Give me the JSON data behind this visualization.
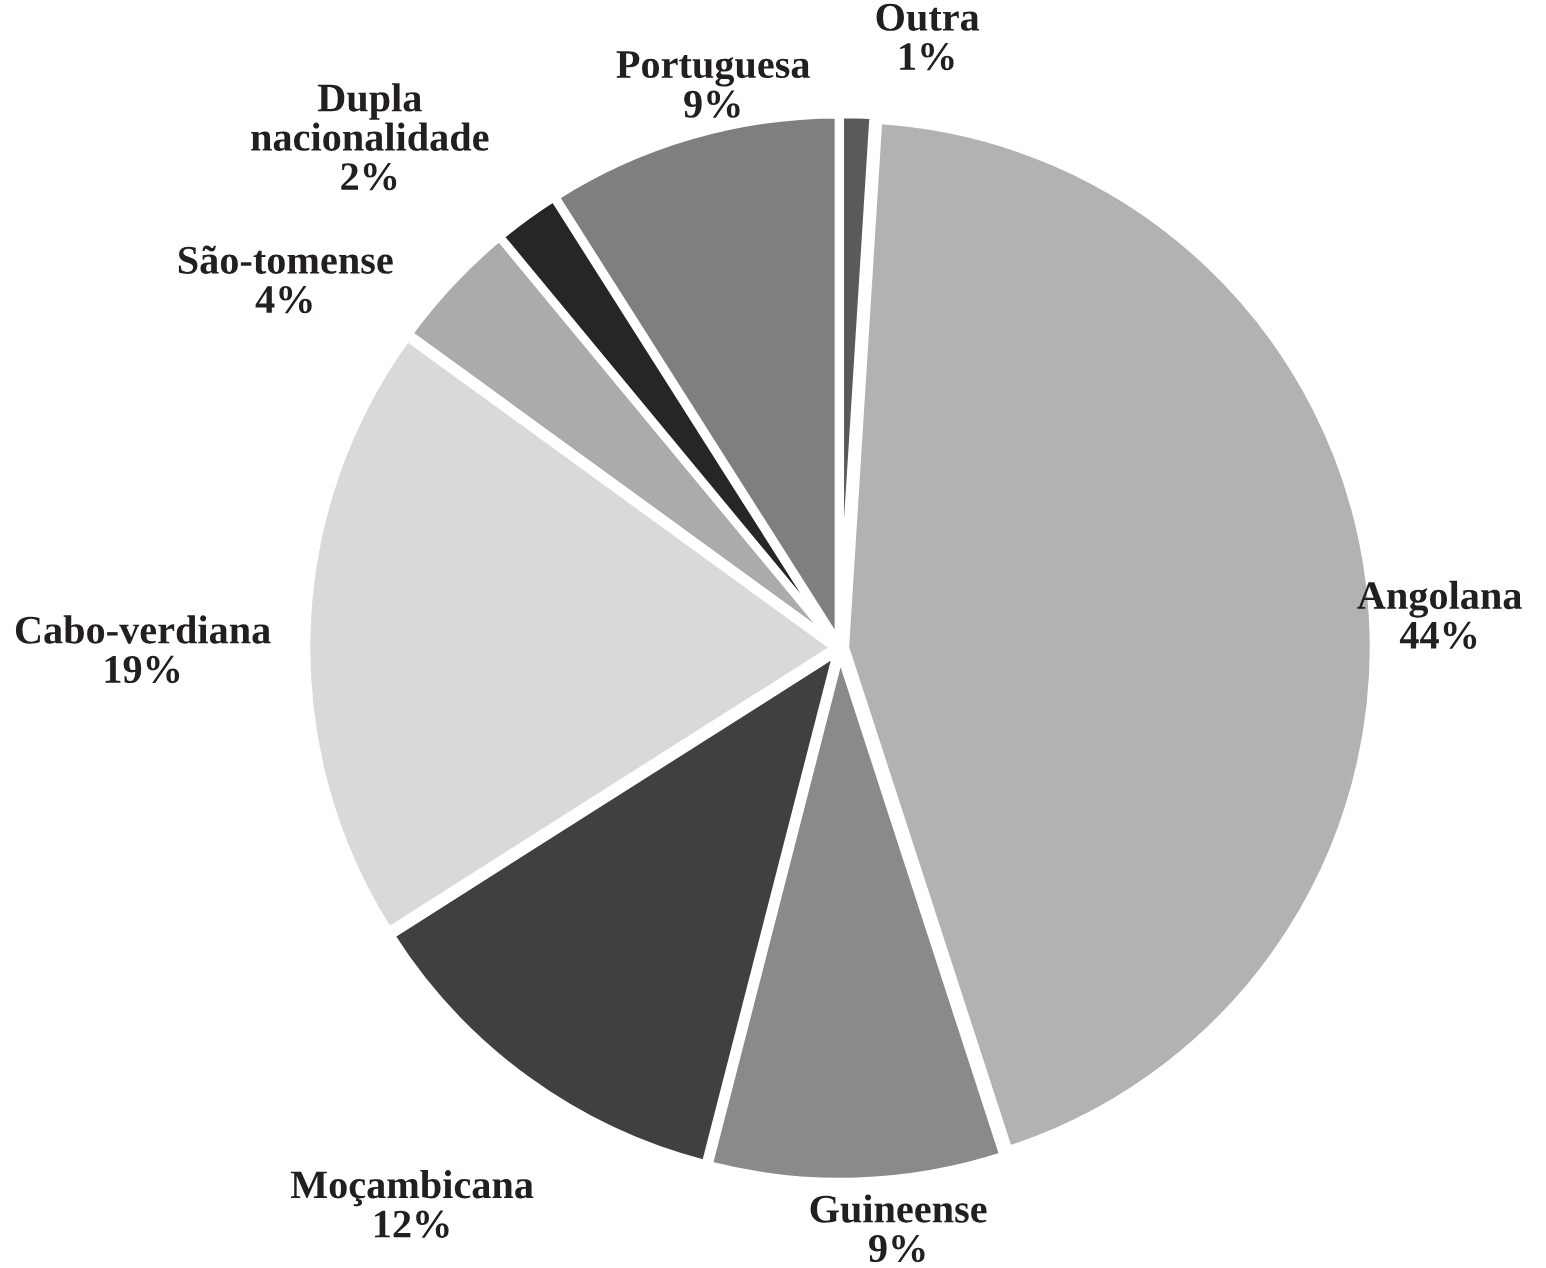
{
  "chart_data": {
    "type": "pie",
    "categories": [
      "Outra",
      "Angolana",
      "Guineense",
      "Moçambicana",
      "Cabo-verdiana",
      "São-tomense",
      "Dupla nacionalidade",
      "Portuguesa"
    ],
    "values": [
      1,
      44,
      9,
      12,
      19,
      4,
      2,
      9
    ],
    "colors": [
      "#5a5a5a",
      "#b2b2b2",
      "#8a8a8a",
      "#404040",
      "#d9d9d9",
      "#ababab",
      "#262626",
      "#7f7f7f"
    ],
    "value_labels": [
      "1%",
      "44%",
      "9%",
      "12%",
      "19%",
      "4%",
      "2%",
      "9%"
    ]
  }
}
